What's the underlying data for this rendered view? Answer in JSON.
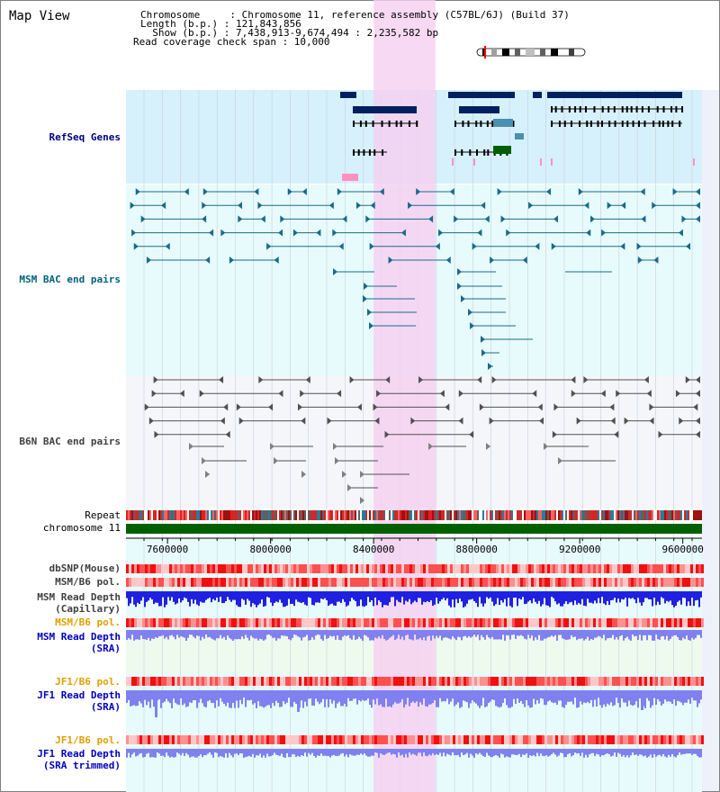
{
  "page": {
    "title": "Map View"
  },
  "header": {
    "chromosome_line": "Chromosome     : Chromosome 11, reference assembly (C57BL/6J) (Build 37)",
    "length_line": "Length (b.p.) : 121,843,856",
    "show_line": "  Show (b.p.) : 7,438,913-9,674,494 : 2,235,582 bp",
    "coverage_line": "Read coverage check span : 10,000"
  },
  "tracks": {
    "refseq": {
      "label": "RefSeq Genes",
      "color": "#000080",
      "bg": "#d6f1fb"
    },
    "msm_bac": {
      "label": "MSM BAC end pairs",
      "color": "#006080",
      "bg": "#e8fbfc"
    },
    "b6n_bac": {
      "label": "B6N BAC end pairs",
      "color": "#404040",
      "bg": "#f4f6fa"
    },
    "repeat": {
      "label": "Repeat"
    },
    "chromosome": {
      "label": "chromosome 11",
      "color": "#006000"
    },
    "dbsnp": {
      "label": "dbSNP(Mouse)"
    },
    "msm_b6_pol_1": {
      "label": "MSM/B6 pol."
    },
    "msm_read_depth_cap": {
      "label_1": "MSM Read Depth",
      "label_2": "(Capillary)"
    },
    "msm_b6_pol_2": {
      "label": "MSM/B6 pol.",
      "color": "#e0a000"
    },
    "msm_read_depth_sra": {
      "label_1": "MSM Read Depth",
      "label_2": "(SRA)",
      "color": "#0000c0"
    },
    "jf1_b6_pol_1": {
      "label": "JF1/B6 pol.",
      "color": "#e0a000"
    },
    "jf1_read_depth_sra": {
      "label_1": "JF1 Read Depth",
      "label_2": "(SRA)",
      "color": "#0000c0"
    },
    "jf1_b6_pol_2": {
      "label": "JF1/B6 pol.",
      "color": "#e0a000"
    },
    "jf1_read_depth_trim": {
      "label_1": "JF1 Read Depth",
      "label_2": "(SRA trimmed)",
      "color": "#0000c0"
    }
  },
  "axis": {
    "range": [
      7438913,
      9674494
    ],
    "ticks": [
      7600000,
      8000000,
      8400000,
      8800000,
      9200000,
      9600000
    ],
    "tick_labels": [
      "7600000",
      "8000000",
      "8400000",
      "8800000",
      "9200000",
      "9600000"
    ]
  },
  "highlight": {
    "start": 8400000,
    "end": 8640000,
    "color": "#f6d0f0"
  },
  "colors": {
    "accent_blue": "#0000c0",
    "accent_red": "#ff3030",
    "refseq_dark": "#002060"
  }
}
